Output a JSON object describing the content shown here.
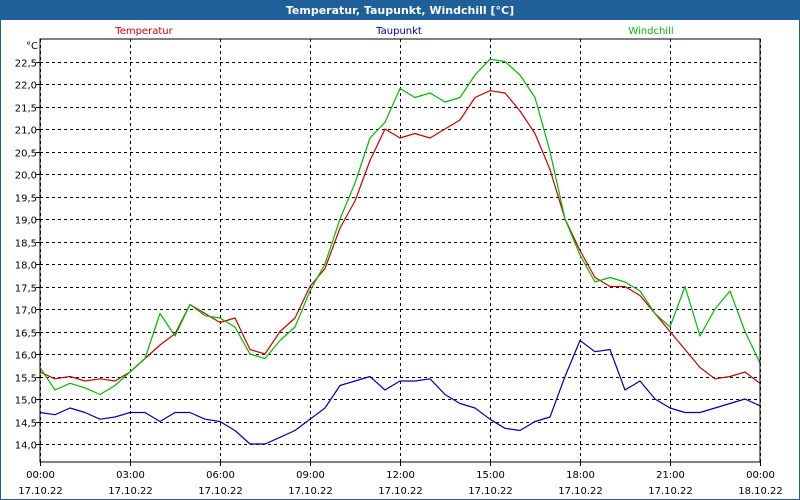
{
  "window": {
    "title": "Temperatur, Taupunkt, Windchill [°C]"
  },
  "chart_data": {
    "type": "line",
    "title": "Temperatur, Taupunkt, Windchill [°C]",
    "ylabel": "°C",
    "ylim": [
      13.6,
      23.0
    ],
    "xlim": [
      0,
      24
    ],
    "grid": true,
    "legend": "top",
    "y_ticks": [
      "14,0",
      "14,5",
      "15,0",
      "15,5",
      "16,0",
      "16,5",
      "17,0",
      "17,5",
      "18,0",
      "18,5",
      "19,0",
      "19,5",
      "20,0",
      "20,5",
      "21,0",
      "21,5",
      "22,0",
      "22,5"
    ],
    "y_tick_values": [
      14.0,
      14.5,
      15.0,
      15.5,
      16.0,
      16.5,
      17.0,
      17.5,
      18.0,
      18.5,
      19.0,
      19.5,
      20.0,
      20.5,
      21.0,
      21.5,
      22.0,
      22.5
    ],
    "x_ticks": [
      {
        "time": "00:00",
        "date": "17.10.22",
        "hour": 0
      },
      {
        "time": "03:00",
        "date": "17.10.22",
        "hour": 3
      },
      {
        "time": "06:00",
        "date": "17.10.22",
        "hour": 6
      },
      {
        "time": "09:00",
        "date": "17.10.22",
        "hour": 9
      },
      {
        "time": "12:00",
        "date": "17.10.22",
        "hour": 12
      },
      {
        "time": "15:00",
        "date": "17.10.22",
        "hour": 15
      },
      {
        "time": "18:00",
        "date": "17.10.22",
        "hour": 18
      },
      {
        "time": "21:00",
        "date": "17.10.22",
        "hour": 21
      },
      {
        "time": "00:00",
        "date": "18.10.22",
        "hour": 24
      }
    ],
    "series": [
      {
        "name": "Temperatur",
        "color": "#cc0000",
        "x": [
          0,
          0.5,
          1,
          1.5,
          2,
          2.5,
          3,
          3.5,
          4,
          4.5,
          5,
          5.5,
          6,
          6.5,
          7,
          7.5,
          8,
          8.5,
          9,
          9.5,
          10,
          10.5,
          11,
          11.5,
          12,
          12.5,
          13,
          13.5,
          14,
          14.5,
          15,
          15.5,
          16,
          16.5,
          17,
          17.5,
          18,
          18.5,
          19,
          19.5,
          20,
          20.5,
          21,
          21.5,
          22,
          22.5,
          23,
          23.5,
          24
        ],
        "values": [
          15.6,
          15.45,
          15.5,
          15.4,
          15.45,
          15.4,
          15.6,
          15.9,
          16.2,
          16.45,
          17.1,
          16.9,
          16.7,
          16.8,
          16.1,
          16.0,
          16.5,
          16.8,
          17.5,
          17.9,
          18.8,
          19.4,
          20.3,
          21.0,
          20.8,
          20.9,
          20.8,
          21.0,
          21.2,
          21.7,
          21.85,
          21.8,
          21.4,
          20.9,
          20.1,
          19.0,
          18.3,
          17.7,
          17.5,
          17.5,
          17.3,
          16.9,
          16.5,
          16.1,
          15.7,
          15.45,
          15.5,
          15.6,
          15.35
        ]
      },
      {
        "name": "Taupunkt",
        "color": "#0000aa",
        "x": [
          0,
          0.5,
          1,
          1.5,
          2,
          2.5,
          3,
          3.5,
          4,
          4.5,
          5,
          5.5,
          6,
          6.5,
          7,
          7.5,
          8,
          8.5,
          9,
          9.5,
          10,
          10.5,
          11,
          11.5,
          12,
          12.5,
          13,
          13.5,
          14,
          14.5,
          15,
          15.5,
          16,
          16.5,
          17,
          17.5,
          18,
          18.5,
          19,
          19.5,
          20,
          20.5,
          21,
          21.5,
          22,
          22.5,
          23,
          23.5,
          24
        ],
        "values": [
          14.7,
          14.65,
          14.8,
          14.7,
          14.55,
          14.6,
          14.7,
          14.7,
          14.5,
          14.7,
          14.7,
          14.55,
          14.5,
          14.3,
          14.0,
          14.0,
          14.15,
          14.3,
          14.55,
          14.8,
          15.3,
          15.4,
          15.5,
          15.2,
          15.4,
          15.4,
          15.45,
          15.1,
          14.9,
          14.8,
          14.55,
          14.35,
          14.3,
          14.5,
          14.6,
          15.5,
          16.3,
          16.05,
          16.1,
          15.2,
          15.4,
          15.0,
          14.8,
          14.7,
          14.7,
          14.8,
          14.9,
          15.0,
          14.85
        ]
      },
      {
        "name": "Windchill",
        "color": "#00bb00",
        "x": [
          0,
          0.5,
          1,
          1.5,
          2,
          2.5,
          3,
          3.5,
          4,
          4.5,
          5,
          5.5,
          6,
          6.5,
          7,
          7.5,
          8,
          8.5,
          9,
          9.5,
          10,
          10.5,
          11,
          11.5,
          12,
          12.5,
          13,
          13.5,
          14,
          14.5,
          15,
          15.5,
          16,
          16.5,
          17,
          17.5,
          18,
          18.5,
          19,
          19.5,
          20,
          20.5,
          21,
          21.5,
          22,
          22.5,
          23,
          23.5,
          24
        ],
        "values": [
          15.7,
          15.2,
          15.35,
          15.25,
          15.1,
          15.3,
          15.6,
          15.9,
          16.9,
          16.4,
          17.1,
          16.85,
          16.8,
          16.6,
          16.0,
          15.9,
          16.3,
          16.6,
          17.4,
          18.0,
          19.0,
          19.8,
          20.8,
          21.15,
          21.9,
          21.7,
          21.8,
          21.6,
          21.7,
          22.2,
          22.55,
          22.5,
          22.2,
          21.7,
          20.5,
          19.0,
          18.2,
          17.6,
          17.7,
          17.6,
          17.4,
          16.9,
          16.6,
          17.5,
          16.4,
          17.0,
          17.4,
          16.5,
          15.8
        ]
      }
    ]
  }
}
